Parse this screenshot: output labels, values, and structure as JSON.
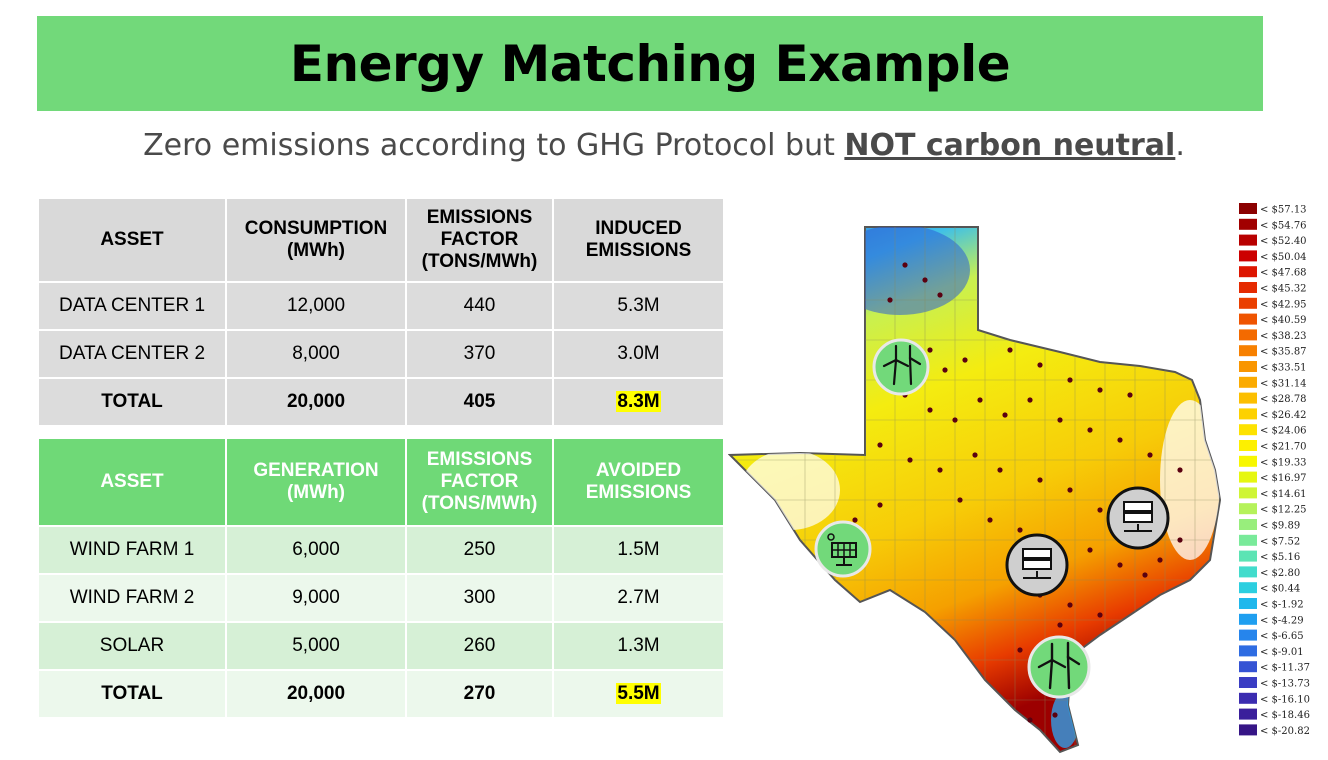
{
  "title": "Energy Matching Example",
  "subtitle": {
    "before": "Zero emissions according to GHG Protocol but ",
    "emphasis": "NOT carbon neutral",
    "after": "."
  },
  "consumption_table": {
    "headers": [
      "ASSET",
      "CONSUMPTION (MWh)",
      "EMISSIONS FACTOR (TONS/MWh)",
      "INDUCED EMISSIONS"
    ],
    "rows": [
      [
        "DATA CENTER 1",
        "12,000",
        "440",
        "5.3M"
      ],
      [
        "DATA CENTER 2",
        "8,000",
        "370",
        "3.0M"
      ]
    ],
    "total": [
      "TOTAL",
      "20,000",
      "405",
      "8.3M"
    ]
  },
  "generation_table": {
    "headers": [
      "ASSET",
      "GENERATION (MWh)",
      "EMISSIONS FACTOR (TONS/MWh)",
      "AVOIDED EMISSIONS"
    ],
    "rows": [
      [
        "WIND FARM 1",
        "6,000",
        "250",
        "1.5M"
      ],
      [
        "WIND FARM 2",
        "9,000",
        "300",
        "2.7M"
      ],
      [
        "SOLAR",
        "5,000",
        "260",
        "1.3M"
      ]
    ],
    "total": [
      "TOTAL",
      "20,000",
      "270",
      "5.5M"
    ]
  },
  "legend": {
    "labels": [
      "< $57.13",
      "< $54.76",
      "< $52.40",
      "< $50.04",
      "< $47.68",
      "< $45.32",
      "< $42.95",
      "< $40.59",
      "< $38.23",
      "< $35.87",
      "< $33.51",
      "< $31.14",
      "< $28.78",
      "< $26.42",
      "< $24.06",
      "< $21.70",
      "< $19.33",
      "< $16.97",
      "< $14.61",
      "< $12.25",
      "< $9.89",
      "< $7.52",
      "< $5.16",
      "< $2.80",
      "< $0.44",
      "< $-1.92",
      "< $-4.29",
      "< $-6.65",
      "< $-9.01",
      "< $-11.37",
      "< $-13.73",
      "< $-16.10",
      "< $-18.46",
      "< $-20.82"
    ],
    "colors": [
      "#8b0000",
      "#a10000",
      "#b80000",
      "#cc0000",
      "#dd1500",
      "#e52a00",
      "#ea3f00",
      "#ef5400",
      "#f36a00",
      "#f78000",
      "#f99600",
      "#fbab00",
      "#fcbf00",
      "#fdd100",
      "#fde200",
      "#fdf000",
      "#f7f700",
      "#e6f710",
      "#cff535",
      "#b5f25a",
      "#98ee7c",
      "#79ea9a",
      "#5ce4b4",
      "#42dccc",
      "#2ccfe0",
      "#1fb8ec",
      "#1f9ff0",
      "#2685ec",
      "#2e6ce2",
      "#3553d4",
      "#3a3dc3",
      "#3b2cb0",
      "#3a1f9b",
      "#361586"
    ]
  },
  "map_icons": [
    "wind-turbine-icon",
    "solar-panel-icon",
    "server-icon",
    "server-icon",
    "wind-turbine-icon"
  ]
}
